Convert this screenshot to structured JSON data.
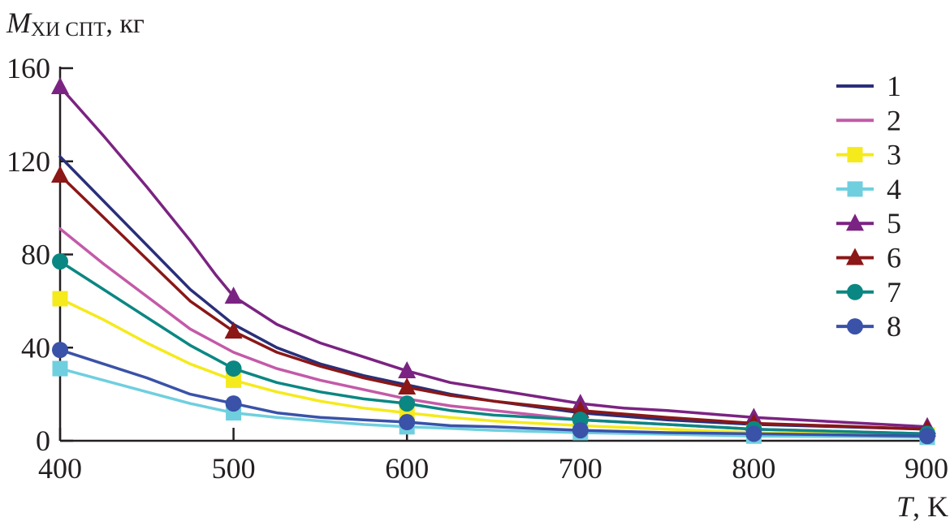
{
  "chart_data": {
    "type": "line",
    "ylabel": {
      "main": "M",
      "sub": "ХИ СПТ",
      "unit": ", кг"
    },
    "xlabel": {
      "main": "T",
      "unit": ", K"
    },
    "xlim": [
      400,
      900
    ],
    "ylim": [
      0,
      160
    ],
    "x_ticks": [
      400,
      500,
      600,
      700,
      800,
      900
    ],
    "y_ticks": [
      0,
      40,
      80,
      120,
      160
    ],
    "grid": false,
    "legend_position": "top-right",
    "series": [
      {
        "name": "1",
        "color": "#2a2f7a",
        "marker": "none",
        "x": [
          400,
          425,
          450,
          475,
          500,
          525,
          550,
          575,
          600,
          625,
          650,
          700,
          750,
          800,
          850,
          900
        ],
        "y": [
          122,
          103,
          84,
          65,
          50,
          40,
          33,
          28,
          24,
          20,
          17,
          12,
          9,
          7,
          6,
          5
        ]
      },
      {
        "name": "2",
        "color": "#c35aa8",
        "marker": "none",
        "x": [
          400,
          425,
          450,
          475,
          500,
          525,
          550,
          575,
          600,
          625,
          650,
          700,
          750,
          800,
          850,
          900
        ],
        "y": [
          91,
          76,
          62,
          48,
          38,
          31,
          26,
          22,
          18,
          15,
          13,
          9,
          7,
          5,
          4,
          3
        ]
      },
      {
        "name": "3",
        "color": "#f5ea1c",
        "marker": "square",
        "x": [
          400,
          425,
          450,
          475,
          500,
          525,
          550,
          575,
          600,
          625,
          650,
          700,
          750,
          800,
          850,
          900
        ],
        "y": [
          61,
          52,
          42,
          33,
          26,
          21,
          17,
          14,
          12,
          10,
          8.5,
          6.5,
          5,
          3.5,
          3,
          2.5
        ]
      },
      {
        "name": "4",
        "color": "#6fcfdf",
        "marker": "square",
        "x": [
          400,
          425,
          450,
          475,
          500,
          525,
          550,
          575,
          600,
          625,
          650,
          700,
          750,
          800,
          850,
          900
        ],
        "y": [
          31,
          26,
          21,
          16,
          12,
          10,
          8.5,
          7,
          6,
          5.3,
          4.5,
          3.5,
          2.8,
          2,
          1.8,
          1.5
        ]
      },
      {
        "name": "5",
        "color": "#7b2382",
        "marker": "triangle",
        "x": [
          400,
          425,
          450,
          475,
          490,
          500,
          525,
          550,
          575,
          600,
          625,
          650,
          675,
          700,
          725,
          750,
          800,
          850,
          900
        ],
        "y": [
          152,
          131,
          109,
          86,
          71,
          62,
          50,
          42,
          36,
          30,
          25,
          22,
          19,
          16,
          14,
          13,
          10,
          8,
          6
        ]
      },
      {
        "name": "6",
        "color": "#8b1717",
        "marker": "triangle",
        "x": [
          400,
          425,
          450,
          475,
          500,
          525,
          550,
          575,
          600,
          625,
          650,
          700,
          750,
          800,
          850,
          900
        ],
        "y": [
          114,
          96,
          78,
          60,
          47,
          38,
          32,
          27,
          23,
          19.5,
          17,
          13,
          10,
          7.5,
          6.3,
          5
        ]
      },
      {
        "name": "7",
        "color": "#0b8783",
        "marker": "circle",
        "x": [
          400,
          425,
          450,
          475,
          500,
          525,
          550,
          575,
          600,
          625,
          650,
          700,
          750,
          800,
          850,
          900
        ],
        "y": [
          77,
          65,
          53,
          41,
          31,
          25,
          21,
          18,
          16,
          13,
          11,
          9,
          7,
          5,
          4,
          3
        ]
      },
      {
        "name": "8",
        "color": "#3a52a8",
        "marker": "circle",
        "x": [
          400,
          425,
          450,
          475,
          500,
          525,
          550,
          575,
          600,
          625,
          650,
          700,
          750,
          800,
          850,
          900
        ],
        "y": [
          39,
          33,
          27,
          20,
          16,
          12,
          10,
          9,
          8,
          6.5,
          6,
          4.5,
          3.5,
          3,
          2.5,
          2
        ]
      }
    ]
  }
}
